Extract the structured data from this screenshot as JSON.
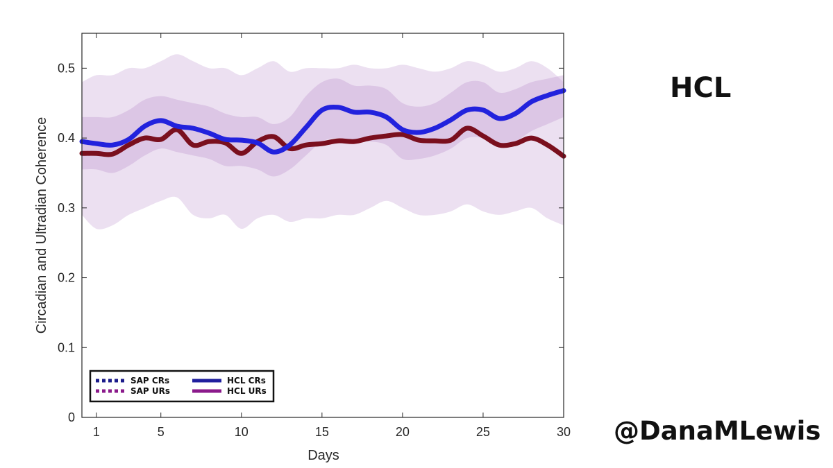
{
  "side_title": "HCL",
  "handle": "@DanaMLewis",
  "chart_data": {
    "type": "line",
    "title": "",
    "xlabel": "Days",
    "ylabel": "Circadian and Ultradian Coherence",
    "xlim": [
      0.1,
      30
    ],
    "ylim": [
      0,
      0.55
    ],
    "xticks": [
      1,
      5,
      10,
      15,
      20,
      25,
      30
    ],
    "yticks": [
      0,
      0.1,
      0.2,
      0.3,
      0.4,
      0.5
    ],
    "ytick_labels": [
      "0",
      "0.1",
      "0.2",
      "0.3",
      "0.4",
      "0.5"
    ],
    "grid": false,
    "legend_position": "bottom-left",
    "legend": [
      {
        "label": "SAP CRs",
        "color": "#1b1b8a",
        "style": "dotted"
      },
      {
        "label": "SAP URs",
        "color": "#8b1a8b",
        "style": "dotted"
      },
      {
        "label": "HCL CRs",
        "color": "#1f1f9e",
        "style": "solid"
      },
      {
        "label": "HCL URs",
        "color": "#8b1a8b",
        "style": "solid"
      }
    ],
    "x": [
      0.1,
      1,
      2,
      3,
      4,
      5,
      6,
      7,
      8,
      9,
      10,
      11,
      12,
      13,
      14,
      15,
      16,
      17,
      18,
      19,
      20,
      21,
      22,
      23,
      24,
      25,
      26,
      27,
      28,
      29,
      30
    ],
    "series": [
      {
        "name": "HCL CRs",
        "color": "#2222dd",
        "values": [
          0.395,
          0.392,
          0.39,
          0.398,
          0.417,
          0.425,
          0.417,
          0.414,
          0.407,
          0.398,
          0.397,
          0.393,
          0.38,
          0.39,
          0.415,
          0.44,
          0.444,
          0.437,
          0.437,
          0.43,
          0.412,
          0.408,
          0.414,
          0.426,
          0.44,
          0.44,
          0.428,
          0.435,
          0.452,
          0.461,
          0.468
        ],
        "band_upper": [
          0.43,
          0.43,
          0.43,
          0.44,
          0.455,
          0.46,
          0.455,
          0.45,
          0.445,
          0.435,
          0.43,
          0.43,
          0.42,
          0.43,
          0.46,
          0.48,
          0.485,
          0.475,
          0.475,
          0.47,
          0.45,
          0.445,
          0.45,
          0.465,
          0.48,
          0.48,
          0.465,
          0.47,
          0.48,
          0.485,
          0.49
        ],
        "band_lower": [
          0.355,
          0.355,
          0.35,
          0.36,
          0.375,
          0.385,
          0.38,
          0.375,
          0.37,
          0.36,
          0.36,
          0.355,
          0.345,
          0.355,
          0.375,
          0.395,
          0.4,
          0.395,
          0.395,
          0.39,
          0.37,
          0.37,
          0.375,
          0.385,
          0.4,
          0.4,
          0.39,
          0.395,
          0.41,
          0.42,
          0.43
        ]
      },
      {
        "name": "HCL URs",
        "color": "#7a0f1e",
        "values": [
          0.378,
          0.378,
          0.377,
          0.39,
          0.4,
          0.398,
          0.412,
          0.39,
          0.395,
          0.393,
          0.378,
          0.395,
          0.402,
          0.385,
          0.39,
          0.392,
          0.396,
          0.395,
          0.4,
          0.403,
          0.405,
          0.397,
          0.396,
          0.397,
          0.414,
          0.403,
          0.39,
          0.392,
          0.4,
          0.39,
          0.374
        ],
        "band_upper": [
          0.48,
          0.49,
          0.49,
          0.5,
          0.5,
          0.51,
          0.52,
          0.51,
          0.5,
          0.5,
          0.49,
          0.5,
          0.51,
          0.495,
          0.5,
          0.5,
          0.5,
          0.505,
          0.5,
          0.5,
          0.505,
          0.5,
          0.495,
          0.5,
          0.51,
          0.505,
          0.495,
          0.5,
          0.51,
          0.5,
          0.48
        ],
        "band_lower": [
          0.29,
          0.27,
          0.275,
          0.29,
          0.3,
          0.31,
          0.315,
          0.29,
          0.285,
          0.29,
          0.27,
          0.285,
          0.29,
          0.28,
          0.285,
          0.285,
          0.29,
          0.29,
          0.3,
          0.31,
          0.3,
          0.29,
          0.29,
          0.295,
          0.305,
          0.295,
          0.29,
          0.295,
          0.3,
          0.285,
          0.275
        ]
      }
    ],
    "band_color": "#c9a7d6"
  }
}
